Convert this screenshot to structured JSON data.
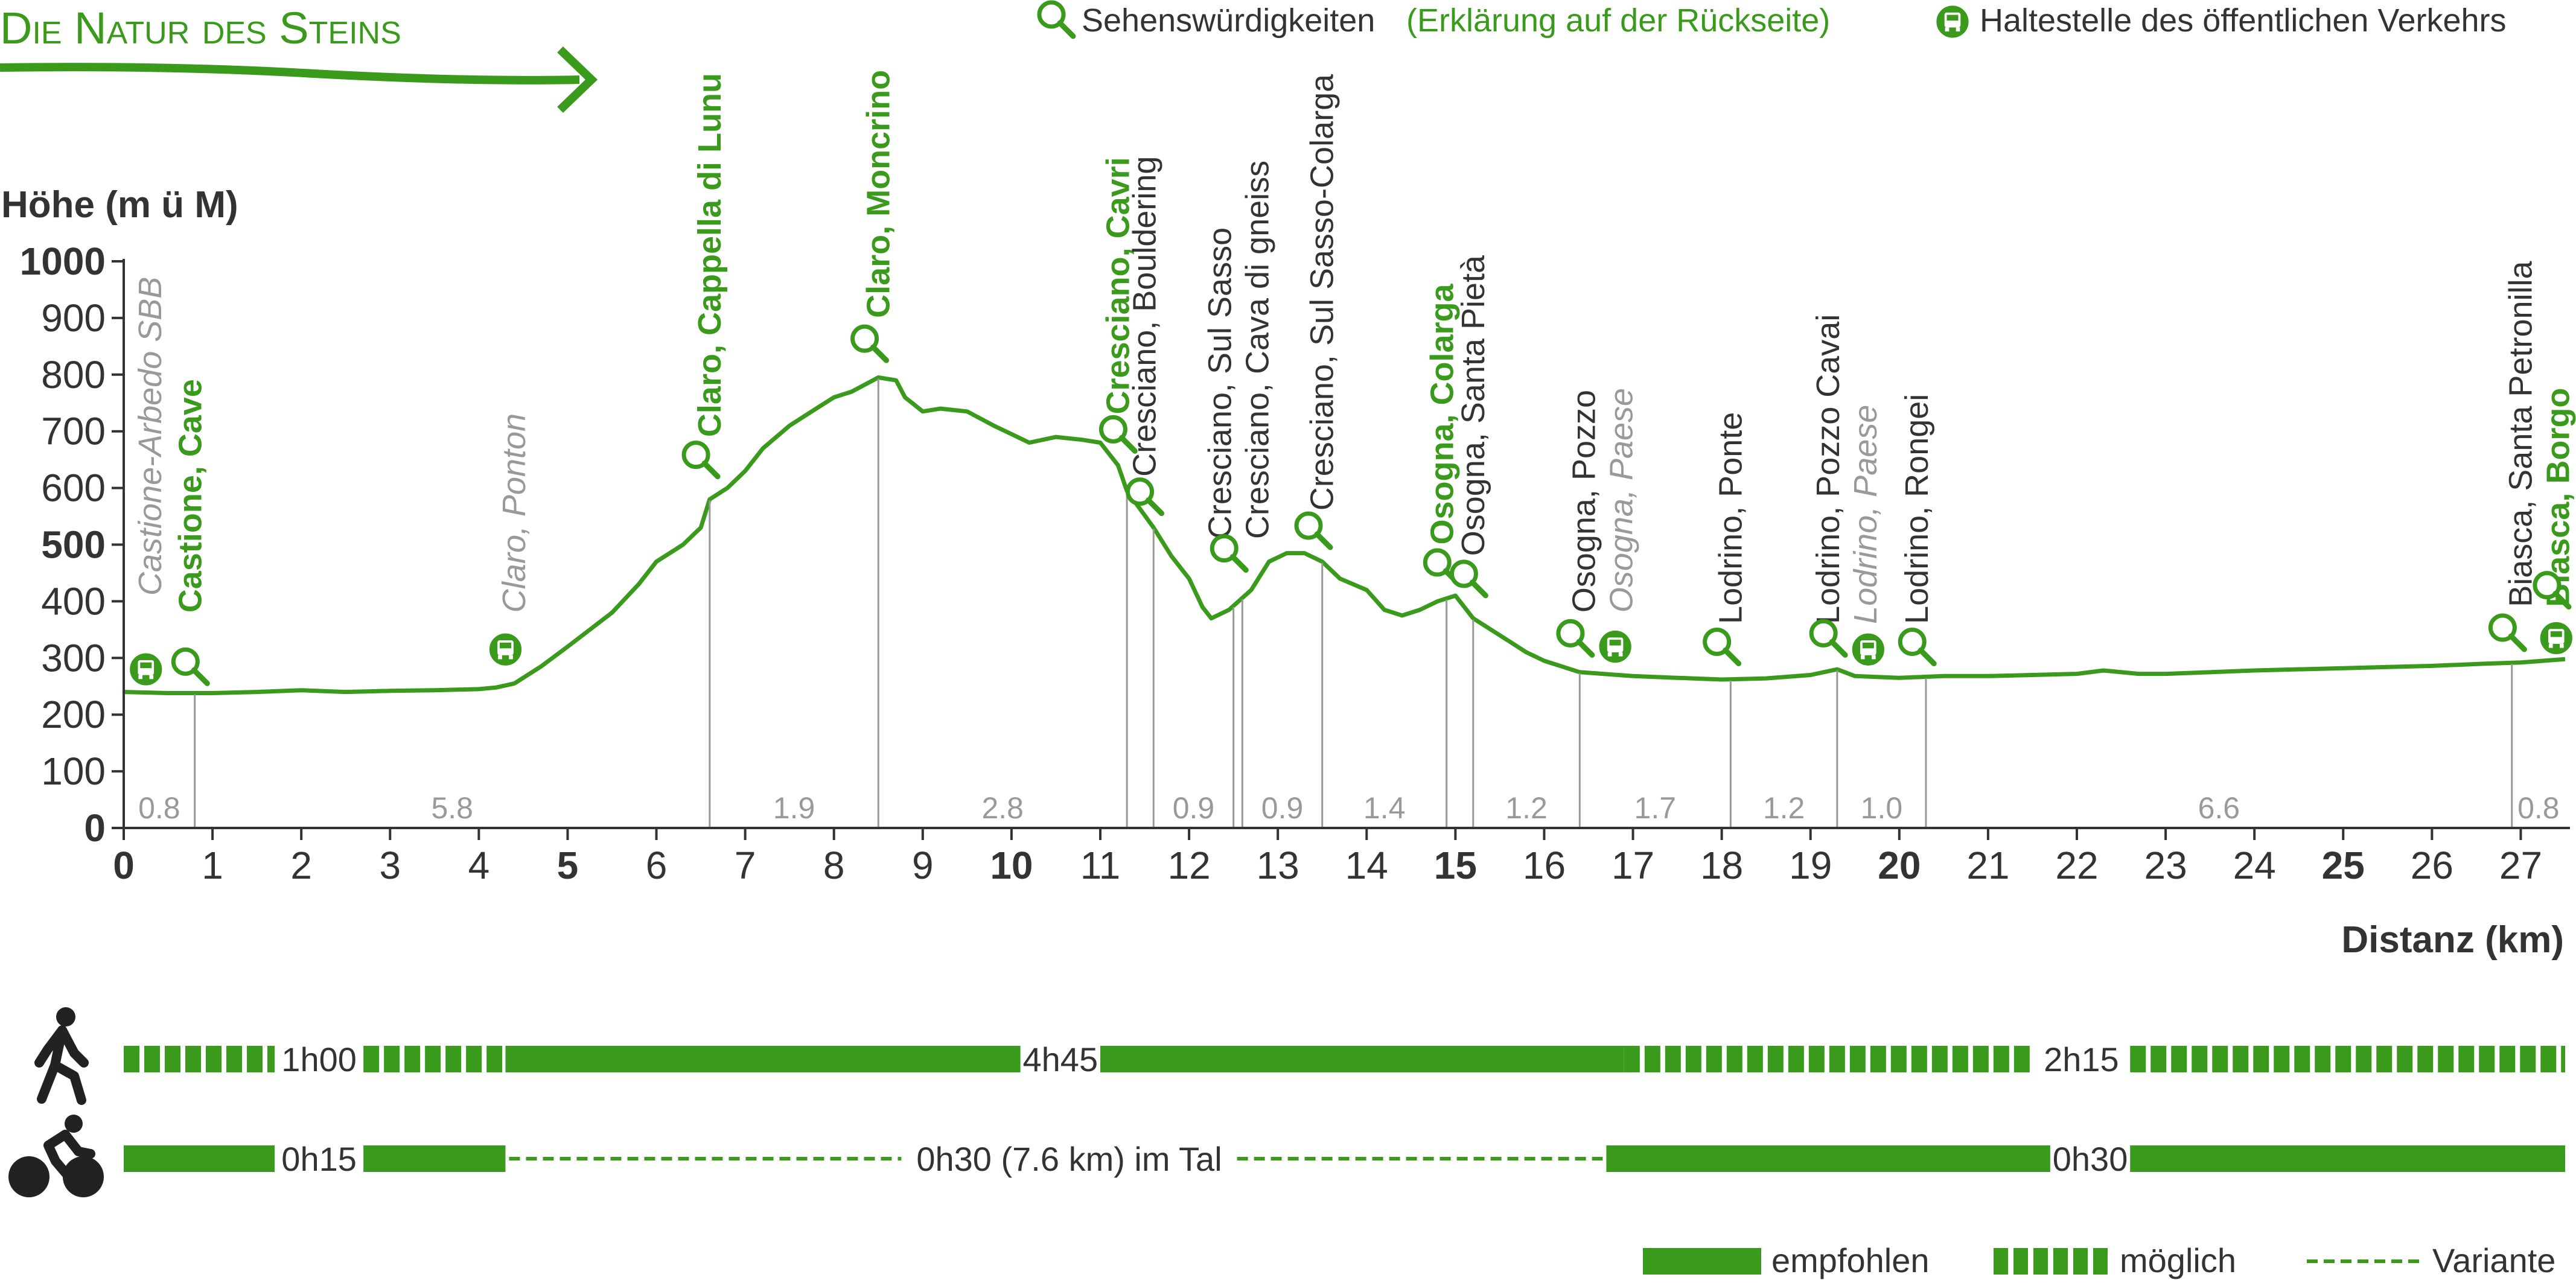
{
  "header": {
    "title": "Die Natur des Steins",
    "legend_poi": "Sehenswürdigkeiten",
    "legend_poi_note": "(Erklärung auf der Rückseite)",
    "legend_stop": "Haltestelle des öffentlichen Verkehrs"
  },
  "colors": {
    "accent": "#3a9a1b",
    "profile": "#3a9a1b",
    "dark_text": "#333333",
    "gray_text": "#999999",
    "grid_line": "#999999"
  },
  "chart_data": {
    "type": "area",
    "ylabel": "Höhe (m ü M)",
    "xlabel": "Distanz (km)",
    "xlim": [
      0,
      27.5
    ],
    "ylim": [
      0,
      1000
    ],
    "x_ticks": [
      0,
      1,
      2,
      3,
      4,
      5,
      6,
      7,
      8,
      9,
      10,
      11,
      12,
      13,
      14,
      15,
      16,
      17,
      18,
      19,
      20,
      21,
      22,
      23,
      24,
      25,
      26,
      27
    ],
    "x_ticks_bold": [
      0,
      5,
      10,
      15,
      20,
      25
    ],
    "y_ticks": [
      0,
      100,
      200,
      300,
      400,
      500,
      600,
      700,
      800,
      900,
      1000
    ],
    "y_ticks_bold": [
      0,
      500,
      1000
    ],
    "profile": [
      [
        0,
        240
      ],
      [
        0.5,
        238
      ],
      [
        1,
        238
      ],
      [
        1.5,
        240
      ],
      [
        2,
        243
      ],
      [
        2.5,
        240
      ],
      [
        3,
        242
      ],
      [
        3.5,
        243
      ],
      [
        4,
        245
      ],
      [
        4.2,
        248
      ],
      [
        4.4,
        255
      ],
      [
        4.7,
        285
      ],
      [
        5,
        320
      ],
      [
        5.5,
        380
      ],
      [
        5.8,
        430
      ],
      [
        6,
        470
      ],
      [
        6.3,
        500
      ],
      [
        6.5,
        530
      ],
      [
        6.6,
        580
      ],
      [
        6.8,
        600
      ],
      [
        7,
        630
      ],
      [
        7.2,
        670
      ],
      [
        7.5,
        710
      ],
      [
        7.8,
        740
      ],
      [
        8,
        760
      ],
      [
        8.2,
        770
      ],
      [
        8.5,
        795
      ],
      [
        8.7,
        790
      ],
      [
        8.8,
        760
      ],
      [
        9,
        735
      ],
      [
        9.2,
        740
      ],
      [
        9.5,
        735
      ],
      [
        9.8,
        710
      ],
      [
        10,
        695
      ],
      [
        10.2,
        680
      ],
      [
        10.5,
        690
      ],
      [
        10.8,
        685
      ],
      [
        11,
        680
      ],
      [
        11.2,
        640
      ],
      [
        11.3,
        595
      ],
      [
        11.6,
        530
      ],
      [
        11.8,
        480
      ],
      [
        12,
        440
      ],
      [
        12.15,
        390
      ],
      [
        12.25,
        370
      ],
      [
        12.45,
        385
      ],
      [
        12.7,
        420
      ],
      [
        12.9,
        470
      ],
      [
        13.1,
        485
      ],
      [
        13.3,
        485
      ],
      [
        13.5,
        470
      ],
      [
        13.7,
        440
      ],
      [
        14,
        420
      ],
      [
        14.2,
        385
      ],
      [
        14.4,
        375
      ],
      [
        14.6,
        385
      ],
      [
        14.8,
        400
      ],
      [
        15,
        410
      ],
      [
        15.2,
        370
      ],
      [
        15.4,
        350
      ],
      [
        15.6,
        330
      ],
      [
        15.8,
        310
      ],
      [
        16,
        295
      ],
      [
        16.4,
        275
      ],
      [
        17,
        268
      ],
      [
        17.5,
        265
      ],
      [
        18,
        262
      ],
      [
        18.5,
        264
      ],
      [
        19,
        270
      ],
      [
        19.3,
        280
      ],
      [
        19.5,
        268
      ],
      [
        20,
        265
      ],
      [
        20.5,
        268
      ],
      [
        21,
        268
      ],
      [
        21.5,
        270
      ],
      [
        22,
        272
      ],
      [
        22.3,
        278
      ],
      [
        22.7,
        272
      ],
      [
        23,
        272
      ],
      [
        24,
        278
      ],
      [
        25,
        282
      ],
      [
        26,
        286
      ],
      [
        26.6,
        290
      ],
      [
        27,
        292
      ],
      [
        27.5,
        298
      ]
    ],
    "segments": [
      {
        "end": 0.8,
        "label": "0.8"
      },
      {
        "end": 6.6,
        "label": "5.8"
      },
      {
        "end": 8.5,
        "label": "1.9"
      },
      {
        "end": 11.3,
        "label": "2.8"
      },
      {
        "end": 11.6,
        "label": ""
      },
      {
        "end": 12.5,
        "label": "0.9"
      },
      {
        "end": 12.6,
        "label": ""
      },
      {
        "end": 13.5,
        "label": "0.9"
      },
      {
        "end": 14.9,
        "label": "1.4"
      },
      {
        "end": 15.2,
        "label": ""
      },
      {
        "end": 16.4,
        "label": "1.2"
      },
      {
        "end": 18.1,
        "label": "1.7"
      },
      {
        "end": 19.3,
        "label": "1.2"
      },
      {
        "end": 20.3,
        "label": "1.0"
      },
      {
        "end": 26.9,
        "label": "6.6"
      },
      {
        "end": 27.5,
        "label": "0.8"
      }
    ],
    "markers": [
      {
        "x": 0.25,
        "y": 280,
        "kind": "stop"
      },
      {
        "x": 0.75,
        "y": 285,
        "kind": "poi"
      },
      {
        "x": 4.3,
        "y": 315,
        "kind": "stop"
      },
      {
        "x": 6.5,
        "y": 650,
        "kind": "poi"
      },
      {
        "x": 8.4,
        "y": 855,
        "kind": "poi"
      },
      {
        "x": 11.2,
        "y": 695,
        "kind": "poi"
      },
      {
        "x": 11.5,
        "y": 585,
        "kind": "poi"
      },
      {
        "x": 12.45,
        "y": 485,
        "kind": "poi"
      },
      {
        "x": 13.4,
        "y": 525,
        "kind": "poi"
      },
      {
        "x": 14.85,
        "y": 460,
        "kind": "poi"
      },
      {
        "x": 15.15,
        "y": 440,
        "kind": "poi"
      },
      {
        "x": 16.35,
        "y": 335,
        "kind": "poi"
      },
      {
        "x": 16.8,
        "y": 320,
        "kind": "stop"
      },
      {
        "x": 18.0,
        "y": 320,
        "kind": "poi"
      },
      {
        "x": 19.2,
        "y": 335,
        "kind": "poi"
      },
      {
        "x": 19.65,
        "y": 315,
        "kind": "stop"
      },
      {
        "x": 20.2,
        "y": 320,
        "kind": "poi"
      },
      {
        "x": 26.85,
        "y": 345,
        "kind": "poi"
      },
      {
        "x": 27.4,
        "y": 335,
        "kind": "stop"
      },
      {
        "x": 27.35,
        "y": 420,
        "kind": "poi"
      }
    ],
    "place_labels": [
      {
        "x": 0.3,
        "y": 410,
        "lines": [
          {
            "text": "Castione-Arbedo SBB",
            "style": "gray"
          }
        ]
      },
      {
        "x": 0.75,
        "y": 380,
        "lines": [
          {
            "text": "Castione, Cave",
            "style": "green"
          }
        ]
      },
      {
        "x": 4.4,
        "y": 380,
        "lines": [
          {
            "text": "Claro, Ponton",
            "style": "gray"
          }
        ]
      },
      {
        "x": 6.6,
        "y": 690,
        "lines": [
          {
            "text": "Claro, Cappella di Lunu",
            "style": "green"
          }
        ]
      },
      {
        "x": 8.5,
        "y": 900,
        "lines": [
          {
            "text": "Claro, Moncrino",
            "style": "green"
          }
        ]
      },
      {
        "x": 11.2,
        "y": 730,
        "lines": [
          {
            "text": "Cresciano, Cavri",
            "style": "green"
          }
        ]
      },
      {
        "x": 11.5,
        "y": 620,
        "lines": [
          {
            "text": "Cresciano, Bouldering",
            "style": "dark"
          }
        ]
      },
      {
        "x": 12.35,
        "y": 510,
        "lines": [
          {
            "text": "Cresciano, Sul Sasso",
            "style": "dark"
          },
          {
            "text": "Cresciano, Cava di gneiss",
            "style": "dark"
          }
        ]
      },
      {
        "x": 13.5,
        "y": 560,
        "lines": [
          {
            "text": "Cresciano, Sul Sasso-Colarga",
            "style": "dark"
          }
        ]
      },
      {
        "x": 14.85,
        "y": 500,
        "lines": [
          {
            "text": "Osogna, Colarga",
            "style": "green"
          }
        ]
      },
      {
        "x": 15.2,
        "y": 480,
        "lines": [
          {
            "text": "Osogna, Santa Pietà",
            "style": "dark"
          }
        ]
      },
      {
        "x": 16.45,
        "y": 380,
        "lines": [
          {
            "text": "Osogna, Pozzo",
            "style": "dark"
          },
          {
            "text": "Osogna, Paese",
            "style": "gray"
          }
        ]
      },
      {
        "x": 18.1,
        "y": 360,
        "lines": [
          {
            "text": "Lodrino, Ponte",
            "style": "dark"
          }
        ]
      },
      {
        "x": 19.2,
        "y": 360,
        "lines": [
          {
            "text": "Lodrino, Pozzo Cavai",
            "style": "dark"
          },
          {
            "text": "Lodrino, Paese",
            "style": "gray"
          }
        ]
      },
      {
        "x": 20.2,
        "y": 360,
        "lines": [
          {
            "text": "Lodrino, Rongei",
            "style": "dark"
          }
        ]
      },
      {
        "x": 27.0,
        "y": 390,
        "lines": [
          {
            "text": "Biasca, Santa Petronilla",
            "style": "dark"
          },
          {
            "text": "Biasca, Borgo",
            "style": "green"
          }
        ]
      }
    ]
  },
  "timeline": {
    "walk": [
      {
        "from": 0,
        "to": 1.7,
        "style": "possible"
      },
      {
        "from": 1.7,
        "to": 2.7,
        "style": "gap",
        "label": "1h00"
      },
      {
        "from": 2.7,
        "to": 4.3,
        "style": "possible"
      },
      {
        "from": 4.3,
        "to": 10.1,
        "style": "recommended"
      },
      {
        "from": 10.1,
        "to": 11.0,
        "style": "gap",
        "label": "4h45"
      },
      {
        "from": 11.0,
        "to": 16.9,
        "style": "recommended"
      },
      {
        "from": 16.9,
        "to": 21.5,
        "style": "possible"
      },
      {
        "from": 21.5,
        "to": 22.6,
        "style": "gap",
        "label": "2h15"
      },
      {
        "from": 22.6,
        "to": 27.5,
        "style": "possible"
      }
    ],
    "bike": [
      {
        "from": 0,
        "to": 1.7,
        "style": "recommended"
      },
      {
        "from": 1.7,
        "to": 2.7,
        "style": "gap",
        "label": "0h15"
      },
      {
        "from": 2.7,
        "to": 4.3,
        "style": "recommended"
      },
      {
        "from": 4.3,
        "to": 8.8,
        "style": "variant"
      },
      {
        "from": 8.8,
        "to": 12.5,
        "style": "gap",
        "label": "0h30 (7.6 km) im Tal"
      },
      {
        "from": 12.5,
        "to": 16.7,
        "style": "variant"
      },
      {
        "from": 16.7,
        "to": 21.7,
        "style": "recommended"
      },
      {
        "from": 21.7,
        "to": 22.6,
        "style": "gap",
        "label": "0h30"
      },
      {
        "from": 22.6,
        "to": 27.5,
        "style": "recommended"
      }
    ]
  },
  "legend": {
    "recommended": "empfohlen",
    "possible": "möglich",
    "variant": "Variante"
  }
}
